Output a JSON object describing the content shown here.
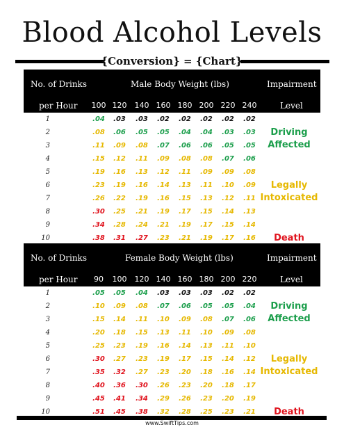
{
  "title": "Blood Alcohol Levels",
  "subtitle": "{Conversion} = {Chart}",
  "website": "www.SwiftTips.com",
  "colors": {
    "green": "#1b9e4b",
    "yellow": "#e6b800",
    "red": "#e0141e",
    "black": "#111111"
  },
  "male": {
    "header": {
      "drinks_line1": "No. of Drinks",
      "drinks_line2": "per Hour",
      "weight_title": "Male Body Weight (lbs)",
      "impairment_line1": "Impairment",
      "impairment_line2": "Level"
    },
    "weights": [
      "100",
      "120",
      "140",
      "160",
      "180",
      "200",
      "220",
      "240"
    ],
    "rows": [
      {
        "drinks": "1",
        "values": [
          ".04",
          ".03",
          ".03",
          ".02",
          ".02",
          ".02",
          ".02",
          ".02"
        ],
        "colors": [
          "green",
          "black",
          "black",
          "black",
          "black",
          "black",
          "black",
          "black"
        ]
      },
      {
        "drinks": "2",
        "values": [
          ".08",
          ".06",
          ".05",
          ".05",
          ".04",
          ".04",
          ".03",
          ".03"
        ],
        "colors": [
          "yellow",
          "green",
          "green",
          "green",
          "green",
          "green",
          "green",
          "green"
        ]
      },
      {
        "drinks": "3",
        "values": [
          ".11",
          ".09",
          ".08",
          ".07",
          ".06",
          ".06",
          ".05",
          ".05"
        ],
        "colors": [
          "yellow",
          "yellow",
          "yellow",
          "green",
          "green",
          "green",
          "green",
          "green"
        ]
      },
      {
        "drinks": "4",
        "values": [
          ".15",
          ".12",
          ".11",
          ".09",
          ".08",
          ".08",
          ".07",
          ".06"
        ],
        "colors": [
          "yellow",
          "yellow",
          "yellow",
          "yellow",
          "yellow",
          "yellow",
          "green",
          "green"
        ]
      },
      {
        "drinks": "5",
        "values": [
          ".19",
          ".16",
          ".13",
          ".12",
          ".11",
          ".09",
          ".09",
          ".08"
        ],
        "colors": [
          "yellow",
          "yellow",
          "yellow",
          "yellow",
          "yellow",
          "yellow",
          "yellow",
          "yellow"
        ]
      },
      {
        "drinks": "6",
        "values": [
          ".23",
          ".19",
          ".16",
          ".14",
          ".13",
          ".11",
          ".10",
          ".09"
        ],
        "colors": [
          "yellow",
          "yellow",
          "yellow",
          "yellow",
          "yellow",
          "yellow",
          "yellow",
          "yellow"
        ]
      },
      {
        "drinks": "7",
        "values": [
          ".26",
          ".22",
          ".19",
          ".16",
          ".15",
          ".13",
          ".12",
          ".11"
        ],
        "colors": [
          "yellow",
          "yellow",
          "yellow",
          "yellow",
          "yellow",
          "yellow",
          "yellow",
          "yellow"
        ]
      },
      {
        "drinks": "8",
        "values": [
          ".30",
          ".25",
          ".21",
          ".19",
          ".17",
          ".15",
          ".14",
          ".13"
        ],
        "colors": [
          "red",
          "yellow",
          "yellow",
          "yellow",
          "yellow",
          "yellow",
          "yellow",
          "yellow"
        ]
      },
      {
        "drinks": "9",
        "values": [
          ".34",
          ".28",
          ".24",
          ".21",
          ".19",
          ".17",
          ".15",
          ".14"
        ],
        "colors": [
          "red",
          "yellow",
          "yellow",
          "yellow",
          "yellow",
          "yellow",
          "yellow",
          "yellow"
        ]
      },
      {
        "drinks": "10",
        "values": [
          ".38",
          ".31",
          ".27",
          ".23",
          ".21",
          ".19",
          ".17",
          ".16"
        ],
        "colors": [
          "red",
          "red",
          "red",
          "yellow",
          "yellow",
          "yellow",
          "yellow",
          "yellow"
        ]
      }
    ],
    "levels": [
      {
        "text": "Driving Affected",
        "color": "green"
      },
      {
        "text": "Legally Intoxicated",
        "color": "yellow"
      },
      {
        "text": "Death",
        "color": "red"
      }
    ]
  },
  "female": {
    "header": {
      "drinks_line1": "No. of Drinks",
      "drinks_line2": "per Hour",
      "weight_title": "Female Body Weight (lbs)",
      "impairment_line1": "Impairment",
      "impairment_line2": "Level"
    },
    "weights": [
      "90",
      "100",
      "120",
      "140",
      "160",
      "180",
      "200",
      "220"
    ],
    "rows": [
      {
        "drinks": "1",
        "values": [
          ".05",
          ".05",
          ".04",
          ".03",
          ".03",
          ".03",
          ".02",
          ".02"
        ],
        "colors": [
          "green",
          "green",
          "green",
          "black",
          "black",
          "black",
          "black",
          "black"
        ]
      },
      {
        "drinks": "2",
        "values": [
          ".10",
          ".09",
          ".08",
          ".07",
          ".06",
          ".05",
          ".05",
          ".04"
        ],
        "colors": [
          "yellow",
          "yellow",
          "yellow",
          "green",
          "green",
          "green",
          "green",
          "green"
        ]
      },
      {
        "drinks": "3",
        "values": [
          ".15",
          ".14",
          ".11",
          ".10",
          ".09",
          ".08",
          ".07",
          ".06"
        ],
        "colors": [
          "yellow",
          "yellow",
          "yellow",
          "yellow",
          "yellow",
          "yellow",
          "green",
          "green"
        ]
      },
      {
        "drinks": "4",
        "values": [
          ".20",
          ".18",
          ".15",
          ".13",
          ".11",
          ".10",
          ".09",
          ".08"
        ],
        "colors": [
          "yellow",
          "yellow",
          "yellow",
          "yellow",
          "yellow",
          "yellow",
          "yellow",
          "yellow"
        ]
      },
      {
        "drinks": "5",
        "values": [
          ".25",
          ".23",
          ".19",
          ".16",
          ".14",
          ".13",
          ".11",
          ".10"
        ],
        "colors": [
          "yellow",
          "yellow",
          "yellow",
          "yellow",
          "yellow",
          "yellow",
          "yellow",
          "yellow"
        ]
      },
      {
        "drinks": "6",
        "values": [
          ".30",
          ".27",
          ".23",
          ".19",
          ".17",
          ".15",
          ".14",
          ".12"
        ],
        "colors": [
          "red",
          "yellow",
          "yellow",
          "yellow",
          "yellow",
          "yellow",
          "yellow",
          "yellow"
        ]
      },
      {
        "drinks": "7",
        "values": [
          ".35",
          ".32",
          ".27",
          ".23",
          ".20",
          ".18",
          ".16",
          ".14"
        ],
        "colors": [
          "red",
          "red",
          "yellow",
          "yellow",
          "yellow",
          "yellow",
          "yellow",
          "yellow"
        ]
      },
      {
        "drinks": "8",
        "values": [
          ".40",
          ".36",
          ".30",
          ".26",
          ".23",
          ".20",
          ".18",
          ".17"
        ],
        "colors": [
          "red",
          "red",
          "red",
          "yellow",
          "yellow",
          "yellow",
          "yellow",
          "yellow"
        ]
      },
      {
        "drinks": "9",
        "values": [
          ".45",
          ".41",
          ".34",
          ".29",
          ".26",
          ".23",
          ".20",
          ".19"
        ],
        "colors": [
          "red",
          "red",
          "red",
          "yellow",
          "yellow",
          "yellow",
          "yellow",
          "yellow"
        ]
      },
      {
        "drinks": "10",
        "values": [
          ".51",
          ".45",
          ".38",
          ".32",
          ".28",
          ".25",
          ".23",
          ".21"
        ],
        "colors": [
          "red",
          "red",
          "red",
          "yellow",
          "yellow",
          "yellow",
          "yellow",
          "yellow"
        ]
      }
    ],
    "levels": [
      {
        "text": "Driving Affected",
        "color": "green"
      },
      {
        "text": "Legally Intoxicated",
        "color": "yellow"
      },
      {
        "text": "Death",
        "color": "red"
      }
    ]
  }
}
